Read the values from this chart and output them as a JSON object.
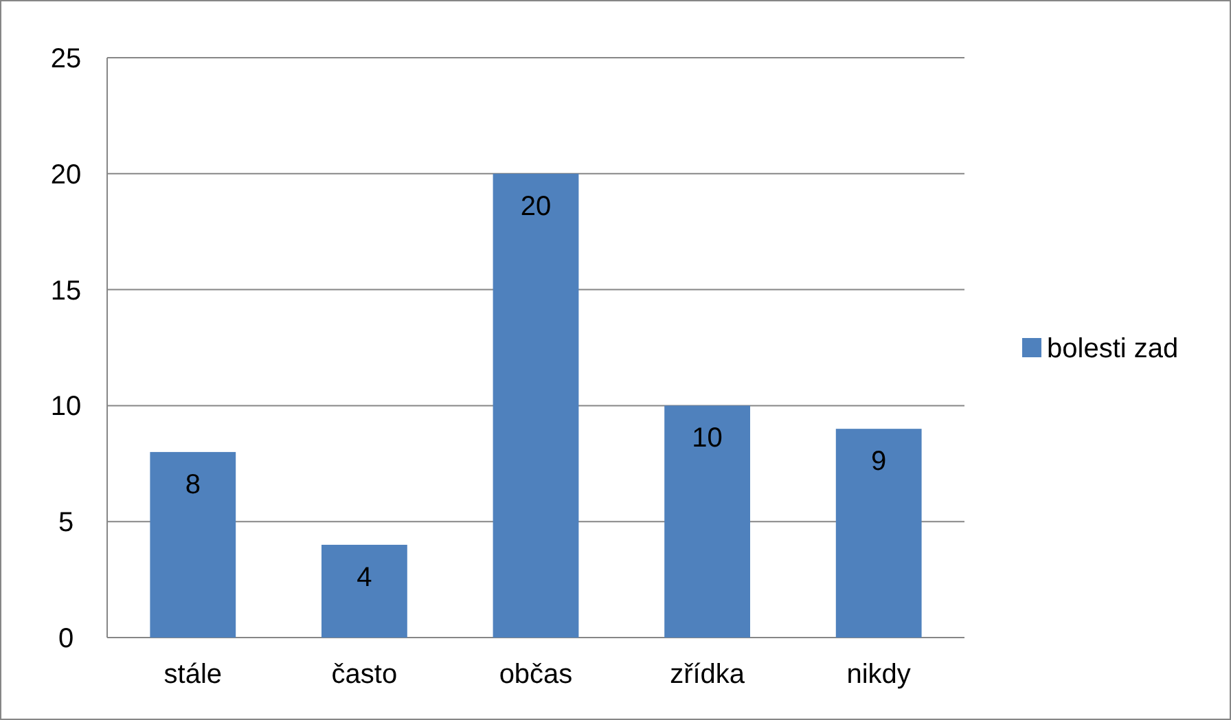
{
  "chart_data": {
    "type": "bar",
    "categories": [
      "stále",
      "často",
      "občas",
      "zřídka",
      "nikdy"
    ],
    "series": [
      {
        "name": "bolesti zad",
        "color": "#4f81bd",
        "values": [
          8,
          4,
          20,
          10,
          9
        ]
      }
    ],
    "ylim": [
      0,
      25
    ],
    "yticks": [
      0,
      5,
      10,
      15,
      20,
      25
    ],
    "grid": "y",
    "legend": "right",
    "data_labels": true
  }
}
